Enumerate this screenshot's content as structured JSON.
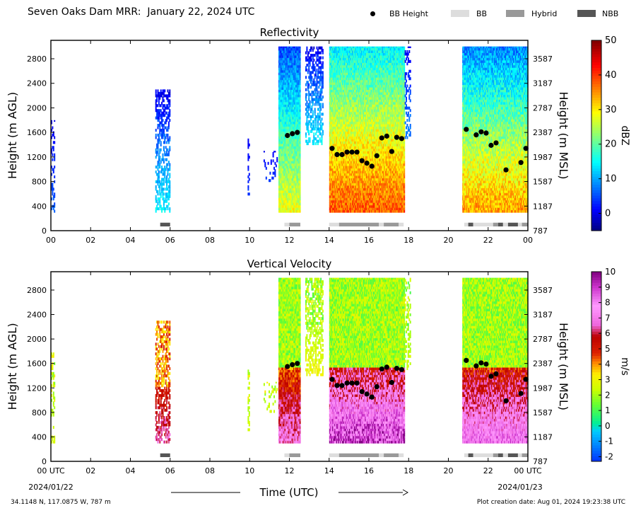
{
  "figure": {
    "title": "Seven Oaks Dam MRR:  January 22, 2024 UTC",
    "footer_left": "34.1148 N, 117.0875 W, 787 m",
    "footer_right": "Plot creation date: Aug 01, 2024 19:23:38 UTC",
    "time_axis_label": "Time (UTC)",
    "start_date": "2024/01/22",
    "end_date": "2024/01/23",
    "first_tick_suffix": "00 UTC",
    "last_tick_suffix": "00 UTC"
  },
  "legend": [
    {
      "label": "BB Height",
      "kind": "dot",
      "color": "#000000"
    },
    {
      "label": "BB",
      "kind": "swatch",
      "color": "#dddddd"
    },
    {
      "label": "Hybrid",
      "kind": "swatch",
      "color": "#999999"
    },
    {
      "label": "NBB",
      "kind": "swatch",
      "color": "#555555"
    }
  ],
  "chart_data": [
    {
      "type": "heatmap",
      "title": "Reflectivity",
      "xlabel": "",
      "ylabel": "Height (m AGL)",
      "ylabel_right": "Height (m MSL)",
      "xlim": [
        0,
        24
      ],
      "ylim": [
        0,
        3100
      ],
      "x_ticks": [
        "00",
        "02",
        "04",
        "06",
        "08",
        "10",
        "12",
        "14",
        "16",
        "18",
        "20",
        "22",
        "00"
      ],
      "y_ticks": [
        0,
        400,
        800,
        1200,
        1600,
        2000,
        2400,
        2800
      ],
      "y_ticks_right": [
        "787",
        "1187",
        "1587",
        "1987",
        "2387",
        "2787",
        "3187",
        "3587"
      ],
      "colorbar": {
        "label": "dBZ",
        "min": -5,
        "max": 50,
        "ticks": [
          0,
          10,
          20,
          30,
          40,
          50
        ]
      },
      "bb_height_points": [
        [
          11.9,
          1550
        ],
        [
          12.15,
          1580
        ],
        [
          12.4,
          1600
        ],
        [
          14.15,
          1340
        ],
        [
          14.4,
          1240
        ],
        [
          14.65,
          1240
        ],
        [
          14.9,
          1280
        ],
        [
          15.15,
          1280
        ],
        [
          15.4,
          1280
        ],
        [
          15.65,
          1140
        ],
        [
          15.9,
          1100
        ],
        [
          16.15,
          1050
        ],
        [
          16.4,
          1220
        ],
        [
          16.65,
          1510
        ],
        [
          16.9,
          1540
        ],
        [
          17.15,
          1290
        ],
        [
          17.4,
          1520
        ],
        [
          17.65,
          1500
        ],
        [
          20.9,
          1650
        ],
        [
          21.4,
          1560
        ],
        [
          21.65,
          1610
        ],
        [
          21.9,
          1590
        ],
        [
          22.15,
          1390
        ],
        [
          22.4,
          1430
        ],
        [
          22.9,
          990
        ],
        [
          23.65,
          1110
        ],
        [
          23.9,
          1340
        ]
      ],
      "bb_type_blocks": [
        {
          "start": 5.5,
          "end": 6.0,
          "category": "NBB"
        },
        {
          "start": 11.75,
          "end": 12.0,
          "category": "BB"
        },
        {
          "start": 12.0,
          "end": 12.55,
          "category": "Hybrid"
        },
        {
          "start": 14.0,
          "end": 14.5,
          "category": "BB"
        },
        {
          "start": 14.5,
          "end": 16.5,
          "category": "Hybrid"
        },
        {
          "start": 16.5,
          "end": 16.75,
          "category": "BB"
        },
        {
          "start": 16.75,
          "end": 17.5,
          "category": "Hybrid"
        },
        {
          "start": 17.5,
          "end": 17.75,
          "category": "BB"
        },
        {
          "start": 20.8,
          "end": 21.0,
          "category": "BB"
        },
        {
          "start": 21.0,
          "end": 21.25,
          "category": "NBB"
        },
        {
          "start": 21.25,
          "end": 22.25,
          "category": "BB"
        },
        {
          "start": 22.25,
          "end": 22.5,
          "category": "Hybrid"
        },
        {
          "start": 22.5,
          "end": 22.75,
          "category": "NBB"
        },
        {
          "start": 22.75,
          "end": 23.0,
          "category": "BB"
        },
        {
          "start": 23.0,
          "end": 23.5,
          "category": "NBB"
        },
        {
          "start": 23.5,
          "end": 23.7,
          "category": "BB"
        },
        {
          "start": 23.7,
          "end": 24.0,
          "category": "Hybrid"
        }
      ]
    },
    {
      "type": "heatmap",
      "title": "Vertical Velocity",
      "xlabel": "Time (UTC)",
      "ylabel": "Height (m AGL)",
      "ylabel_right": "Height (m MSL)",
      "xlim": [
        0,
        24
      ],
      "ylim": [
        0,
        3100
      ],
      "x_ticks": [
        "00",
        "02",
        "04",
        "06",
        "08",
        "10",
        "12",
        "14",
        "16",
        "18",
        "20",
        "22",
        "00"
      ],
      "y_ticks": [
        0,
        400,
        800,
        1200,
        1600,
        2000,
        2400,
        2800
      ],
      "y_ticks_right": [
        "787",
        "1187",
        "1587",
        "1987",
        "2387",
        "2787",
        "3187",
        "3587"
      ],
      "colorbar": {
        "label": "m/s",
        "min": -2.3,
        "max": 10,
        "ticks": [
          -2,
          -1,
          0,
          1,
          2,
          3,
          4,
          5,
          6,
          7,
          8,
          9,
          10
        ]
      },
      "bb_height_points": [
        [
          11.9,
          1550
        ],
        [
          12.15,
          1580
        ],
        [
          12.4,
          1600
        ],
        [
          14.15,
          1340
        ],
        [
          14.4,
          1240
        ],
        [
          14.65,
          1240
        ],
        [
          14.9,
          1280
        ],
        [
          15.15,
          1280
        ],
        [
          15.4,
          1280
        ],
        [
          15.65,
          1140
        ],
        [
          15.9,
          1100
        ],
        [
          16.15,
          1050
        ],
        [
          16.4,
          1220
        ],
        [
          16.65,
          1510
        ],
        [
          16.9,
          1540
        ],
        [
          17.15,
          1290
        ],
        [
          17.4,
          1520
        ],
        [
          17.65,
          1500
        ],
        [
          20.9,
          1650
        ],
        [
          21.4,
          1560
        ],
        [
          21.65,
          1610
        ],
        [
          21.9,
          1590
        ],
        [
          22.15,
          1390
        ],
        [
          22.4,
          1430
        ],
        [
          22.9,
          990
        ],
        [
          23.65,
          1110
        ],
        [
          23.9,
          1340
        ]
      ],
      "bb_type_blocks": [
        {
          "start": 5.5,
          "end": 6.0,
          "category": "NBB"
        },
        {
          "start": 11.75,
          "end": 12.0,
          "category": "BB"
        },
        {
          "start": 12.0,
          "end": 12.55,
          "category": "Hybrid"
        },
        {
          "start": 14.0,
          "end": 14.5,
          "category": "BB"
        },
        {
          "start": 14.5,
          "end": 16.5,
          "category": "Hybrid"
        },
        {
          "start": 16.5,
          "end": 16.75,
          "category": "BB"
        },
        {
          "start": 16.75,
          "end": 17.5,
          "category": "Hybrid"
        },
        {
          "start": 17.5,
          "end": 17.75,
          "category": "BB"
        },
        {
          "start": 20.8,
          "end": 21.0,
          "category": "BB"
        },
        {
          "start": 21.0,
          "end": 21.25,
          "category": "NBB"
        },
        {
          "start": 21.25,
          "end": 22.25,
          "category": "BB"
        },
        {
          "start": 22.25,
          "end": 22.5,
          "category": "Hybrid"
        },
        {
          "start": 22.5,
          "end": 22.75,
          "category": "NBB"
        },
        {
          "start": 22.75,
          "end": 23.0,
          "category": "BB"
        },
        {
          "start": 23.0,
          "end": 23.5,
          "category": "NBB"
        },
        {
          "start": 23.5,
          "end": 23.7,
          "category": "BB"
        },
        {
          "start": 23.7,
          "end": 24.0,
          "category": "Hybrid"
        }
      ]
    }
  ],
  "echo_regions": [
    {
      "start": 0.0,
      "end": 0.2,
      "bottom": 300,
      "top": 1800,
      "density": 0.35,
      "refl": [
        0,
        6
      ],
      "vel": [
        1.5,
        2.5
      ]
    },
    {
      "start": 5.25,
      "end": 6.0,
      "bottom": 300,
      "top": 2300,
      "density": 0.5,
      "refl": [
        0,
        14
      ],
      "vel": [
        3,
        6.5
      ]
    },
    {
      "start": 9.9,
      "end": 10.0,
      "bottom": 500,
      "top": 1500,
      "density": 0.5,
      "refl": [
        0,
        4
      ],
      "vel": [
        1.5,
        2.5
      ]
    },
    {
      "start": 10.7,
      "end": 11.4,
      "bottom": 800,
      "top": 1300,
      "density": 0.15,
      "refl": [
        0,
        4
      ],
      "vel": [
        1.5,
        2.5
      ]
    },
    {
      "start": 11.45,
      "end": 12.55,
      "bottom": 300,
      "top": 3000,
      "density": 1.0,
      "refl": [
        5,
        28
      ],
      "vel": [
        1,
        7
      ]
    },
    {
      "start": 12.8,
      "end": 13.7,
      "bottom": 1400,
      "top": 3000,
      "density": 0.5,
      "refl": [
        0,
        14
      ],
      "vel": [
        1,
        3
      ]
    },
    {
      "start": 14.0,
      "end": 17.8,
      "bottom": 300,
      "top": 3000,
      "density": 1.0,
      "refl": [
        14,
        38
      ],
      "vel": [
        1,
        9
      ]
    },
    {
      "start": 17.8,
      "end": 18.1,
      "bottom": 1500,
      "top": 3000,
      "density": 0.3,
      "refl": [
        0,
        8
      ],
      "vel": [
        1,
        2.5
      ]
    },
    {
      "start": 20.7,
      "end": 24.0,
      "bottom": 300,
      "top": 3000,
      "density": 1.0,
      "refl": [
        8,
        34
      ],
      "vel": [
        1,
        8
      ]
    }
  ]
}
